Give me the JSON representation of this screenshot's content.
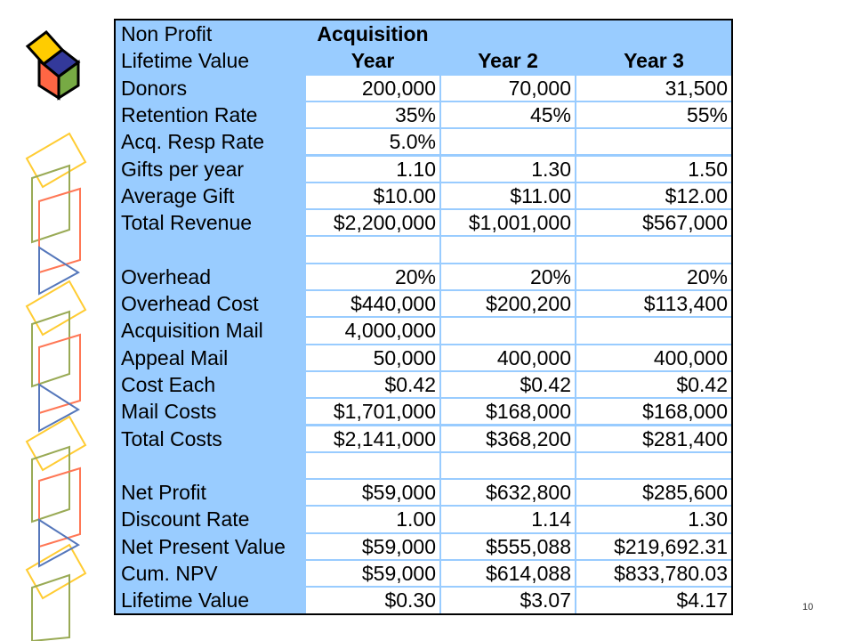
{
  "page_number": "10",
  "table": {
    "header": {
      "row1": {
        "label": "Non Profit",
        "col1": "Acquisition",
        "col2": "",
        "col3": ""
      },
      "row2": {
        "label": "Lifetime Value",
        "col1": "Year",
        "col2": "Year 2",
        "col3": "Year 3"
      }
    },
    "rows": [
      {
        "label": "Donors",
        "values": [
          "200,000",
          "70,000",
          "31,500"
        ]
      },
      {
        "label": "Retention Rate",
        "values": [
          "35%",
          "45%",
          "55%"
        ]
      },
      {
        "label": "Acq. Resp Rate",
        "values": [
          "5.0%",
          "",
          ""
        ]
      },
      {
        "label": "Gifts per year",
        "values": [
          "1.10",
          "1.30",
          "1.50"
        ]
      },
      {
        "label": "Average Gift",
        "values": [
          "$10.00",
          "$11.00",
          "$12.00"
        ]
      },
      {
        "label": "Total Revenue",
        "values": [
          "$2,200,000",
          "$1,001,000",
          "$567,000"
        ]
      },
      {
        "label": "",
        "values": [
          "",
          "",
          ""
        ]
      },
      {
        "label": "Overhead",
        "values": [
          "20%",
          "20%",
          "20%"
        ]
      },
      {
        "label": "Overhead Cost",
        "values": [
          "$440,000",
          "$200,200",
          "$113,400"
        ]
      },
      {
        "label": "Acquisition Mail",
        "values": [
          "4,000,000",
          "",
          ""
        ]
      },
      {
        "label": "Appeal Mail",
        "values": [
          "50,000",
          "400,000",
          "400,000"
        ]
      },
      {
        "label": "Cost Each",
        "values": [
          "$0.42",
          "$0.42",
          "$0.42"
        ]
      },
      {
        "label": "Mail Costs",
        "values": [
          "$1,701,000",
          "$168,000",
          "$168,000"
        ]
      },
      {
        "label": "Total Costs",
        "values": [
          "$2,141,000",
          "$368,200",
          "$281,400"
        ]
      },
      {
        "label": "",
        "values": [
          "",
          "",
          ""
        ]
      },
      {
        "label": "Net Profit",
        "values": [
          "$59,000",
          "$632,800",
          "$285,600"
        ]
      },
      {
        "label": "Discount Rate",
        "values": [
          "1.00",
          "1.14",
          "1.30"
        ]
      },
      {
        "label": "Net Present Value",
        "values": [
          "$59,000",
          "$555,088",
          "$219,692.31"
        ]
      },
      {
        "label": "Cum. NPV",
        "values": [
          "$59,000",
          "$614,088",
          "$833,780.03"
        ]
      },
      {
        "label": "Lifetime Value",
        "values": [
          "$0.30",
          "$3.07",
          "$4.17"
        ]
      }
    ]
  },
  "colors": {
    "label_bg": "#99ccff",
    "cell_bg": "#ffffff",
    "deco_yellow": "#ffcc33",
    "deco_green": "#99aa55",
    "deco_orange": "#ff7755",
    "deco_blue": "#5577bb"
  }
}
